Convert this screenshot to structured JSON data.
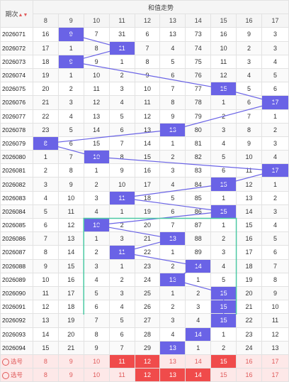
{
  "header": {
    "period_label": "期次",
    "trend_title": "和值走势",
    "columns": [
      "8",
      "9",
      "10",
      "11",
      "12",
      "13",
      "14",
      "15",
      "16",
      "17"
    ]
  },
  "rows": [
    {
      "period": "2026071",
      "cells": [
        "16",
        "9",
        "7",
        "31",
        "6",
        "13",
        "73",
        "16",
        "9",
        "3"
      ],
      "hl": [
        1
      ]
    },
    {
      "period": "2026072",
      "cells": [
        "17",
        "1",
        "8",
        "11",
        "7",
        "4",
        "74",
        "10",
        "2",
        "3"
      ],
      "hl": [
        3
      ]
    },
    {
      "period": "2026073",
      "cells": [
        "18",
        "9",
        "9",
        "1",
        "8",
        "5",
        "75",
        "11",
        "3",
        "4"
      ],
      "hl": [
        1
      ]
    },
    {
      "period": "2026074",
      "cells": [
        "19",
        "1",
        "10",
        "2",
        "9",
        "6",
        "76",
        "12",
        "4",
        "5"
      ],
      "hl": []
    },
    {
      "period": "2026075",
      "cells": [
        "20",
        "2",
        "11",
        "3",
        "10",
        "7",
        "77",
        "15",
        "5",
        "6"
      ],
      "hl": [
        7
      ]
    },
    {
      "period": "2026076",
      "cells": [
        "21",
        "3",
        "12",
        "4",
        "11",
        "8",
        "78",
        "1",
        "6",
        "17"
      ],
      "hl": [
        9
      ]
    },
    {
      "period": "2026077",
      "cells": [
        "22",
        "4",
        "13",
        "5",
        "12",
        "9",
        "79",
        "2",
        "7",
        "1"
      ],
      "hl": []
    },
    {
      "period": "2026078",
      "cells": [
        "23",
        "5",
        "14",
        "6",
        "13",
        "13",
        "80",
        "3",
        "8",
        "2"
      ],
      "hl": [
        5
      ]
    },
    {
      "period": "2026079",
      "cells": [
        "8",
        "6",
        "15",
        "7",
        "14",
        "1",
        "81",
        "4",
        "9",
        "3"
      ],
      "hl": [
        0
      ]
    },
    {
      "period": "2026080",
      "cells": [
        "1",
        "7",
        "10",
        "8",
        "15",
        "2",
        "82",
        "5",
        "10",
        "4"
      ],
      "hl": [
        2
      ]
    },
    {
      "period": "2026081",
      "cells": [
        "2",
        "8",
        "1",
        "9",
        "16",
        "3",
        "83",
        "6",
        "11",
        "17"
      ],
      "hl": [
        9
      ]
    },
    {
      "period": "2026082",
      "cells": [
        "3",
        "9",
        "2",
        "10",
        "17",
        "4",
        "84",
        "15",
        "12",
        "1"
      ],
      "hl": [
        7
      ]
    },
    {
      "period": "2026083",
      "cells": [
        "4",
        "10",
        "3",
        "11",
        "18",
        "5",
        "85",
        "1",
        "13",
        "2"
      ],
      "hl": [
        3
      ]
    },
    {
      "period": "2026084",
      "cells": [
        "5",
        "11",
        "4",
        "1",
        "19",
        "6",
        "86",
        "15",
        "14",
        "3"
      ],
      "hl": [
        7
      ]
    },
    {
      "period": "2026085",
      "cells": [
        "6",
        "12",
        "10",
        "2",
        "20",
        "7",
        "87",
        "1",
        "15",
        "4"
      ],
      "hl": [
        2
      ]
    },
    {
      "period": "2026086",
      "cells": [
        "7",
        "13",
        "1",
        "3",
        "21",
        "13",
        "88",
        "2",
        "16",
        "5"
      ],
      "hl": [
        5
      ]
    },
    {
      "period": "2026087",
      "cells": [
        "8",
        "14",
        "2",
        "11",
        "22",
        "1",
        "89",
        "3",
        "17",
        "6"
      ],
      "hl": [
        3
      ]
    },
    {
      "period": "2026088",
      "cells": [
        "9",
        "15",
        "3",
        "1",
        "23",
        "2",
        "14",
        "4",
        "18",
        "7"
      ],
      "hl": [
        6
      ]
    },
    {
      "period": "2026089",
      "cells": [
        "10",
        "16",
        "4",
        "2",
        "24",
        "13",
        "1",
        "5",
        "19",
        "8"
      ],
      "hl": [
        5
      ]
    },
    {
      "period": "2026090",
      "cells": [
        "11",
        "17",
        "5",
        "3",
        "25",
        "1",
        "2",
        "15",
        "20",
        "9"
      ],
      "hl": [
        7
      ]
    },
    {
      "period": "2026091",
      "cells": [
        "12",
        "18",
        "6",
        "4",
        "26",
        "2",
        "3",
        "15",
        "21",
        "10"
      ],
      "hl": [
        7
      ]
    },
    {
      "period": "2026092",
      "cells": [
        "13",
        "19",
        "7",
        "5",
        "27",
        "3",
        "4",
        "15",
        "22",
        "11"
      ],
      "hl": [
        7
      ]
    },
    {
      "period": "2026093",
      "cells": [
        "14",
        "20",
        "8",
        "6",
        "28",
        "4",
        "14",
        "1",
        "23",
        "12"
      ],
      "hl": [
        6
      ]
    },
    {
      "period": "2026094",
      "cells": [
        "15",
        "21",
        "9",
        "7",
        "29",
        "13",
        "1",
        "2",
        "24",
        "13"
      ],
      "hl": [
        5
      ]
    }
  ],
  "select_rows": [
    {
      "label": "选号",
      "cells": [
        "8",
        "9",
        "10",
        "11",
        "12",
        "13",
        "14",
        "15",
        "16",
        "17"
      ],
      "hl": [
        3,
        4,
        7
      ]
    },
    {
      "label": "选号",
      "cells": [
        "8",
        "9",
        "10",
        "11",
        "12",
        "13",
        "14",
        "15",
        "16",
        "17"
      ],
      "hl": [
        4,
        5,
        6
      ]
    }
  ],
  "colors": {
    "highlight": "#6a63e6",
    "selected": "#f04b4b",
    "box": "#4cc9a4",
    "trend_line": "#6a63e6"
  }
}
